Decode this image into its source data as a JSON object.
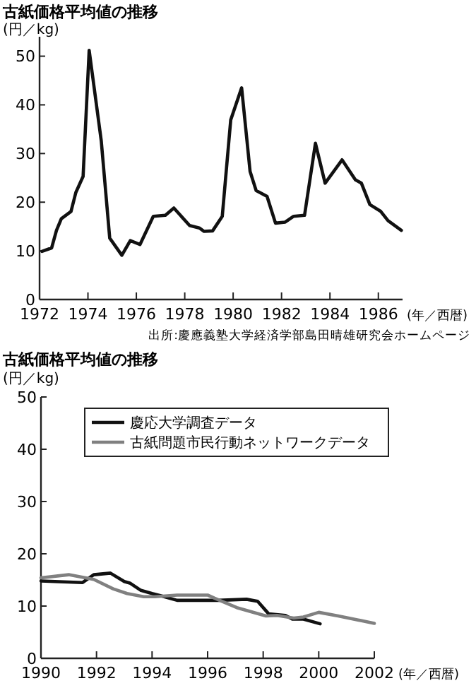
{
  "chart_data": [
    {
      "type": "line",
      "title": "古紙価格平均値の推移",
      "ylabel": "(円／kg)",
      "xlabel": "(年／西暦)",
      "annotations": [
        "出所:慶應義塾大学経済学部島田晴雄研究会ホームページ"
      ],
      "xlim": [
        1972,
        1987
      ],
      "xticks": [
        1972,
        1974,
        1976,
        1978,
        1980,
        1982,
        1984,
        1986
      ],
      "ylim": [
        0,
        54
      ],
      "yticks": [
        0,
        10,
        20,
        30,
        40,
        50
      ],
      "grid": false,
      "legend": false,
      "line_style": "solid",
      "series": [
        {
          "color": "#111111",
          "x": [
            1972.1,
            1972.5,
            1972.7,
            1972.9,
            1973.3,
            1973.5,
            1973.8,
            1974.05,
            1974.55,
            1974.9,
            1975.4,
            1975.75,
            1976.15,
            1976.7,
            1977.2,
            1977.55,
            1978.2,
            1978.6,
            1978.8,
            1979.15,
            1979.55,
            1979.9,
            1980.35,
            1980.7,
            1980.95,
            1981.4,
            1981.75,
            1982.15,
            1982.5,
            1982.95,
            1983.4,
            1983.8,
            1984.5,
            1985.05,
            1985.3,
            1985.65,
            1986.1,
            1986.4,
            1986.95
          ],
          "values": [
            9.9,
            10.6,
            14.2,
            16.6,
            18.1,
            22,
            25.3,
            51.2,
            32.6,
            12.6,
            9.1,
            12.1,
            11.3,
            17.1,
            17.3,
            18.8,
            15.2,
            14.7,
            14,
            14.1,
            17.1,
            36.9,
            43.5,
            26.3,
            22.4,
            21.2,
            15.7,
            15.9,
            17.1,
            17.3,
            32.1,
            23.9,
            28.7,
            24.6,
            23.9,
            19.5,
            18.1,
            16.2,
            14.2
          ]
        }
      ]
    },
    {
      "type": "line",
      "title": "古紙価格平均値の推移",
      "ylabel": "(円／kg)",
      "xlabel": "(年／西暦)",
      "xlim": [
        1990,
        2002
      ],
      "xticks": [
        1990,
        1992,
        1994,
        1996,
        1998,
        2000,
        2002
      ],
      "ylim": [
        0,
        50
      ],
      "yticks": [
        0,
        10,
        20,
        30,
        40,
        50
      ],
      "grid": false,
      "legend": "top",
      "line_style": "solid",
      "series": [
        {
          "name": "慶応大学調査データ",
          "color": "#111111",
          "x": [
            1990,
            1991.5,
            1991.9,
            1992.5,
            1993,
            1993.2,
            1993.6,
            1994,
            1994.3,
            1994.9,
            1996.4,
            1997.4,
            1997.8,
            1998.2,
            1998.8,
            1999.05,
            1999.45,
            2000.05
          ],
          "values": [
            14.8,
            14.5,
            16,
            16.3,
            14.7,
            14.4,
            13,
            12.4,
            12,
            11.1,
            11.1,
            11.3,
            10.9,
            8.5,
            8.2,
            7.5,
            7.5,
            6.6
          ]
        },
        {
          "name": "古紙問題市民行動ネットワークデータ",
          "color": "#808080",
          "x": [
            1990,
            1991,
            1991.9,
            1992.6,
            1993.1,
            1993.7,
            1994.1,
            1994.9,
            1996,
            1996.25,
            1997.05,
            1998.1,
            1998.5,
            1999.1,
            1999.45,
            2000,
            2000.7,
            2002
          ],
          "values": [
            15.4,
            16,
            15.1,
            13.3,
            12.4,
            11.8,
            11.8,
            12.1,
            12.1,
            11.5,
            9.7,
            8.1,
            8.2,
            7.7,
            7.9,
            8.8,
            8.1,
            6.7
          ]
        }
      ]
    }
  ]
}
